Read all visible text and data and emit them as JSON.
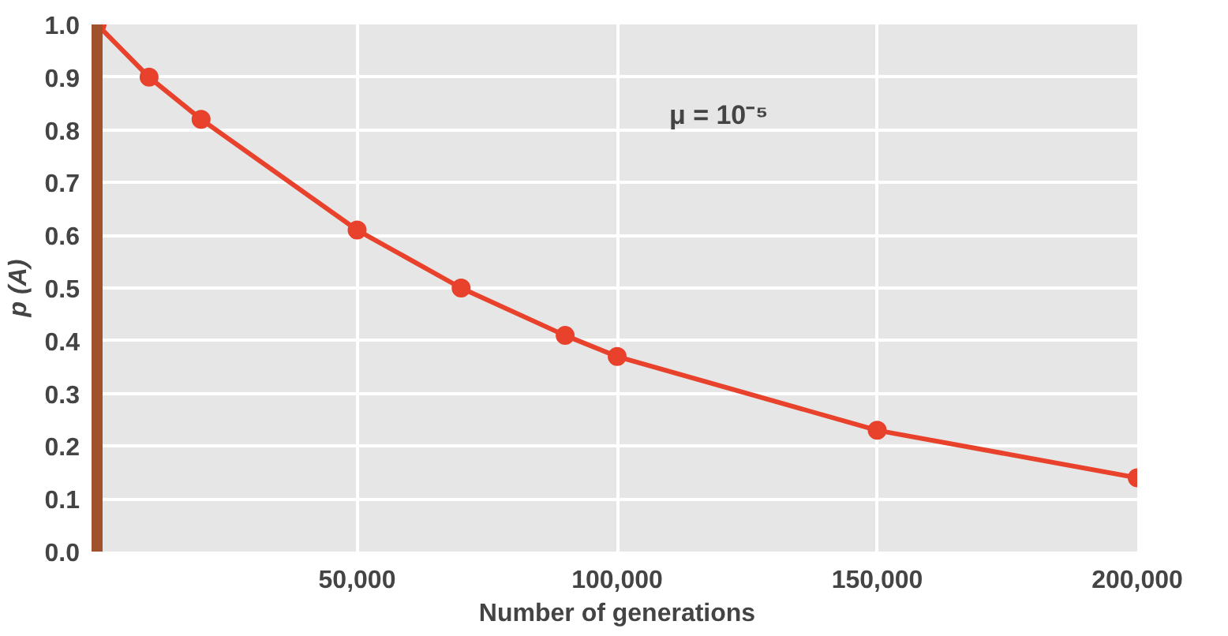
{
  "chart_data": {
    "type": "line",
    "xlabel": "Number of generations",
    "ylabel": "p (A)",
    "x": [
      0,
      10000,
      20000,
      50000,
      70000,
      90000,
      100000,
      150000,
      200000
    ],
    "series": [
      {
        "color": "#e8412c",
        "values": [
          1.0,
          0.9,
          0.82,
          0.61,
          0.5,
          0.41,
          0.37,
          0.23,
          0.14
        ]
      }
    ],
    "xlim": [
      0,
      200000
    ],
    "ylim": [
      0,
      1
    ],
    "xticks": [
      {
        "value": 50000,
        "label": "50,000"
      },
      {
        "value": 100000,
        "label": "100,000"
      },
      {
        "value": 150000,
        "label": "150,000"
      },
      {
        "value": 200000,
        "label": "200,000"
      }
    ],
    "yticks": [
      {
        "value": 0,
        "label": "0.0"
      },
      0.1,
      0.2,
      0.3,
      0.4,
      0.5,
      0.6,
      0.7,
      0.8,
      0.9,
      {
        "value": 1,
        "label": "1.0"
      }
    ],
    "annotations": [
      "μ = 10⁻⁵"
    ],
    "grid": true,
    "marker": "circle",
    "line_style": "solid"
  }
}
